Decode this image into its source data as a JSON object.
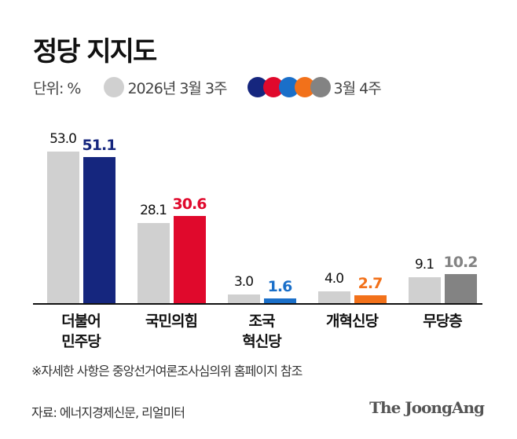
{
  "header": {
    "title": "정당 지지도",
    "unit_label": "단위: %",
    "legend_prev": "2026년 3월 3주",
    "legend_curr": "3월 4주"
  },
  "chart_data": {
    "type": "bar",
    "title": "정당 지지도",
    "xlabel": "",
    "ylabel": "단위: %",
    "categories": [
      "더불어 민주당",
      "국민의힘",
      "조국 혁신당",
      "개혁신당",
      "무당층"
    ],
    "series": [
      {
        "name": "2026년 3월 3주",
        "values": [
          53.0,
          28.1,
          3.0,
          4.0,
          9.1
        ],
        "color": "#d0d0d0"
      },
      {
        "name": "3월 4주",
        "values": [
          51.1,
          30.6,
          1.6,
          2.7,
          10.2
        ],
        "colors": [
          "#15267e",
          "#e0092c",
          "#1a6fc9",
          "#f2711a",
          "#838383"
        ]
      }
    ],
    "grid": false,
    "legend_position": "top-left"
  },
  "labels": {
    "prev": [
      "53.0",
      "28.1",
      "3.0",
      "4.0",
      "9.1"
    ],
    "curr": [
      "51.1",
      "30.6",
      "1.6",
      "2.7",
      "10.2"
    ],
    "cats_line1": [
      "더불어",
      "국민의힘",
      "조국",
      "개혁신당",
      "무당층"
    ],
    "cats_line2": [
      "민주당",
      "",
      "혁신당",
      "",
      ""
    ]
  },
  "colors": {
    "prev": "#d0d0d0",
    "curr": [
      "#15267e",
      "#e0092c",
      "#1a6fc9",
      "#f2711a",
      "#838383"
    ]
  },
  "footer": {
    "note": "※자세한 사항은 중앙선거여론조사심의위 홈페이지 참조",
    "source": "자료: 에너지경제신문, 리얼미터",
    "brand": "The JoongAng"
  }
}
